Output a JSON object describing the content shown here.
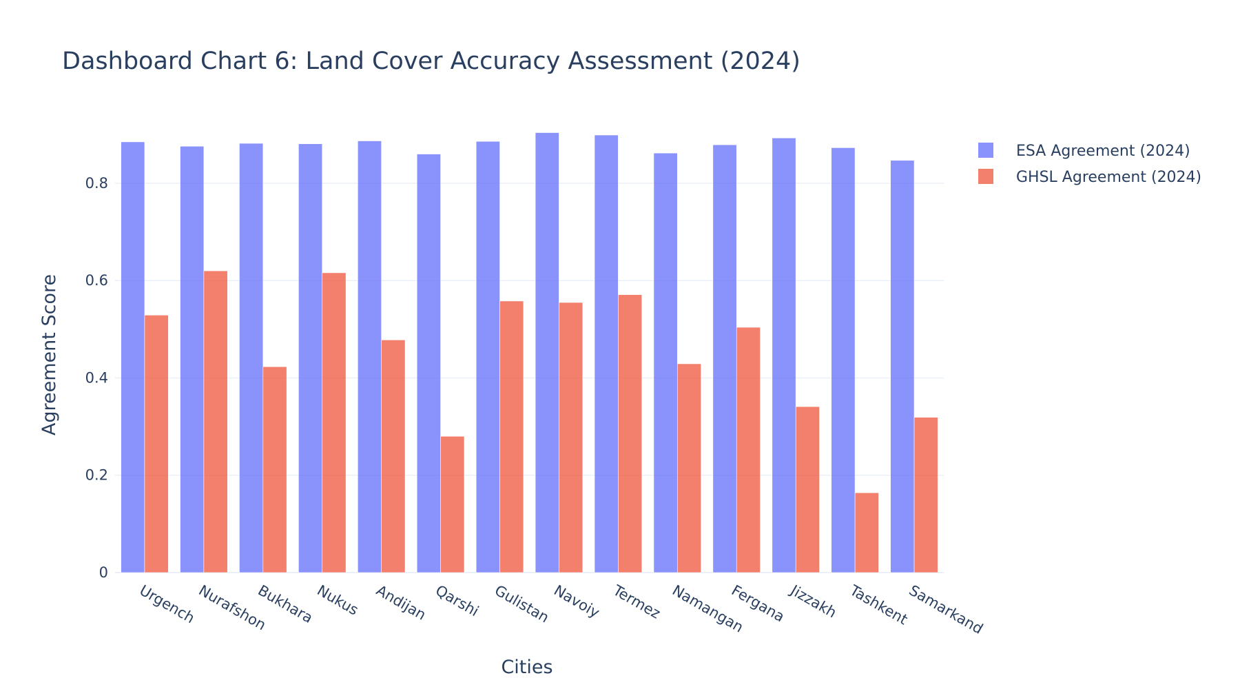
{
  "chart_data": {
    "type": "bar",
    "title": "Dashboard Chart 6: Land Cover Accuracy Assessment (2024)",
    "xlabel": "Cities",
    "ylabel": "Agreement Score",
    "categories": [
      "Urgench",
      "Nurafshon",
      "Bukhara",
      "Nukus",
      "Andijan",
      "Qarshi",
      "Gulistan",
      "Navoiy",
      "Termez",
      "Namangan",
      "Fergana",
      "Jizzakh",
      "Tashkent",
      "Samarkand"
    ],
    "series": [
      {
        "name": "ESA Agreement (2024)",
        "color": "#636efa",
        "values": [
          0.885,
          0.876,
          0.882,
          0.881,
          0.887,
          0.86,
          0.886,
          0.904,
          0.899,
          0.862,
          0.879,
          0.893,
          0.873,
          0.847
        ]
      },
      {
        "name": "GHSL Agreement (2024)",
        "color": "#ef553b",
        "values": [
          0.529,
          0.62,
          0.423,
          0.616,
          0.478,
          0.28,
          0.558,
          0.555,
          0.571,
          0.429,
          0.504,
          0.341,
          0.164,
          0.319
        ]
      }
    ],
    "ylim": [
      0,
      0.95
    ],
    "yticks": [
      0,
      0.2,
      0.4,
      0.6,
      0.8
    ],
    "ytick_labels": [
      "0",
      "0.2",
      "0.4",
      "0.6",
      "0.8"
    ],
    "grid": true,
    "legend_position": "top-right",
    "bar_opacity": 0.75
  }
}
